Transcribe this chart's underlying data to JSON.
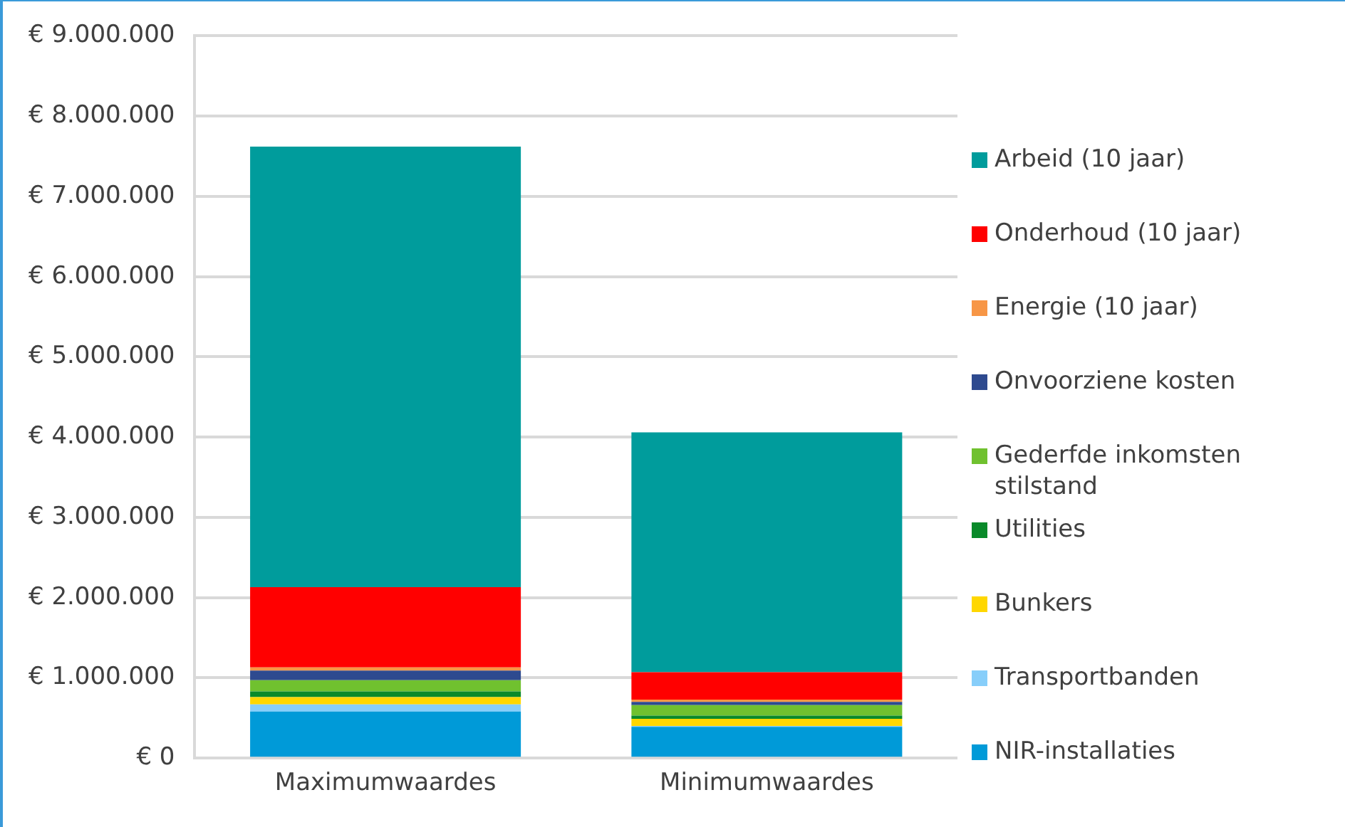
{
  "chart_data": {
    "type": "bar",
    "stacked": true,
    "categories": [
      "Maximumwaardes",
      "Minimumwaardes"
    ],
    "series": [
      {
        "name": "NIR-installaties",
        "color": "#009ad8",
        "values": [
          580000,
          390000
        ]
      },
      {
        "name": "Transportbanden",
        "color": "#87cefa",
        "values": [
          90000,
          10000
        ]
      },
      {
        "name": "Bunkers",
        "color": "#ffd700",
        "values": [
          90000,
          90000
        ]
      },
      {
        "name": "Utilities",
        "color": "#0a8a2a",
        "values": [
          70000,
          40000
        ]
      },
      {
        "name": "Gederfde inkomsten stilstand",
        "color": "#70c12f",
        "values": [
          140000,
          130000
        ]
      },
      {
        "name": "Onvoorziene kosten",
        "color": "#2e4a8f",
        "values": [
          120000,
          40000
        ]
      },
      {
        "name": "Energie (10 jaar)",
        "color": "#f79646",
        "values": [
          40000,
          30000
        ]
      },
      {
        "name": "Onderhoud (10 jaar)",
        "color": "#ff0000",
        "values": [
          1000000,
          340000
        ]
      },
      {
        "name": "Arbeid (10 jaar)",
        "color": "#009c9c",
        "values": [
          5490000,
          2990000
        ]
      }
    ],
    "ylim": [
      0,
      9000000
    ],
    "yticks": [
      {
        "value": 0,
        "label": "€ 0"
      },
      {
        "value": 1000000,
        "label": "€ 1.000.000"
      },
      {
        "value": 2000000,
        "label": "€ 2.000.000"
      },
      {
        "value": 3000000,
        "label": "€ 3.000.000"
      },
      {
        "value": 4000000,
        "label": "€ 4.000.000"
      },
      {
        "value": 5000000,
        "label": "€ 5.000.000"
      },
      {
        "value": 6000000,
        "label": "€ 6.000.000"
      },
      {
        "value": 7000000,
        "label": "€ 7.000.000"
      },
      {
        "value": 8000000,
        "label": "€ 8.000.000"
      },
      {
        "value": 9000000,
        "label": "€ 9.000.000"
      }
    ],
    "grid": "y",
    "legend": "right"
  }
}
